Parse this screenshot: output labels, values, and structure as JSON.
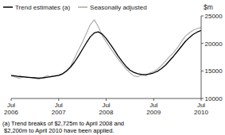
{
  "chart_data": {
    "type": "line",
    "y_label": "$m",
    "annotations": [
      "(a) Trend breaks of $2,725m to April 2008 and\n $2,200m to April 2010 have been applied."
    ],
    "categories": [
      "Jul\n2006",
      null,
      null,
      null,
      null,
      null,
      null,
      null,
      null,
      null,
      null,
      null,
      "Jul\n2007",
      null,
      null,
      null,
      null,
      null,
      null,
      null,
      null,
      null,
      null,
      null,
      "Jul\n2008",
      null,
      null,
      null,
      null,
      null,
      null,
      null,
      null,
      null,
      null,
      null,
      "Jul\n2009",
      null,
      null,
      null,
      null,
      null,
      null,
      null,
      null,
      null,
      null,
      null,
      "Jul\n2010"
    ],
    "series": [
      {
        "name": "Seasonally adjusted",
        "color": "#aaaaaa",
        "values": [
          14100,
          13900,
          13700,
          13850,
          14000,
          13800,
          13650,
          13500,
          13800,
          14100,
          14000,
          14200,
          14100,
          14400,
          14900,
          15800,
          17300,
          18800,
          20200,
          21800,
          23400,
          24300,
          23100,
          21400,
          20300,
          19200,
          18200,
          17200,
          16300,
          15400,
          14700,
          14100,
          13950,
          14300,
          14100,
          14600,
          14900,
          15300,
          16000,
          16800,
          17600,
          18300,
          19200,
          20300,
          21300,
          21900,
          22400,
          22700,
          22900
        ]
      },
      {
        "name": "Trend estimates (a)",
        "color": "#000000",
        "values": [
          14200,
          14100,
          14000,
          13950,
          13850,
          13800,
          13750,
          13700,
          13750,
          13850,
          13950,
          14050,
          14200,
          14500,
          15000,
          15700,
          16600,
          17700,
          18900,
          20100,
          21200,
          21900,
          22100,
          21700,
          20900,
          19900,
          18850,
          17750,
          16750,
          15850,
          15150,
          14750,
          14500,
          14350,
          14350,
          14450,
          14650,
          14950,
          15450,
          16050,
          16850,
          17650,
          18550,
          19450,
          20350,
          21050,
          21650,
          22050,
          22350
        ]
      }
    ],
    "ylim": [
      10000,
      25000
    ],
    "yticks": [
      10000,
      15000,
      20000,
      25000
    ],
    "grid": false,
    "legend": "upper left"
  }
}
